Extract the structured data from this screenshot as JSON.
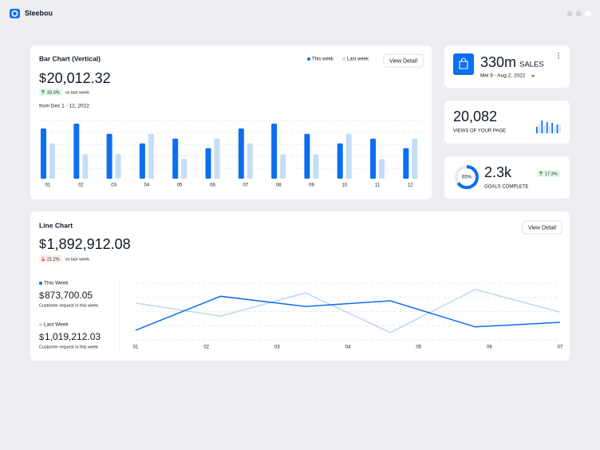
{
  "header": {
    "brand": "Sleebou"
  },
  "chart_data": [
    {
      "type": "bar",
      "title": "Bar Chart (Vertical)",
      "button": "View Detail",
      "currency": "$",
      "total": "20,012.32",
      "change": "33.3%",
      "change_note": "vs last week",
      "period": "from Dec 1 - 12, 2022",
      "categories": [
        "01",
        "02",
        "03",
        "04",
        "05",
        "06",
        "07",
        "08",
        "09",
        "10",
        "11",
        "12"
      ],
      "series": [
        {
          "name": "This week",
          "color": "#0b6ff0",
          "values": [
            84,
            92,
            75,
            59,
            67,
            51,
            84,
            92,
            75,
            59,
            67,
            51
          ]
        },
        {
          "name": "Last week",
          "color": "#c6ddf8",
          "values": [
            59,
            41,
            41,
            75,
            33,
            67,
            59,
            41,
            41,
            75,
            33,
            67
          ]
        }
      ],
      "ylim": [
        0,
        100
      ],
      "grid": true
    },
    {
      "type": "line",
      "title": "Line Chart",
      "button": "View Detail",
      "currency": "$",
      "total": "1,892,912.08",
      "change": "21.2%",
      "change_note": "vs last week",
      "x": [
        1,
        2.2,
        3.4,
        4.6,
        5.8,
        7
      ],
      "xlim": [
        1,
        7
      ],
      "xticks": [
        {
          "value": 1,
          "label": "01"
        },
        {
          "value": 2,
          "label": "02"
        },
        {
          "value": 3,
          "label": "03"
        },
        {
          "value": 4,
          "label": "04"
        },
        {
          "value": 5,
          "label": "05"
        },
        {
          "value": 6,
          "label": "06"
        },
        {
          "value": 7,
          "label": "07"
        }
      ],
      "ylim": [
        0,
        100
      ],
      "grid": true,
      "series": [
        {
          "name": "This Week",
          "color": "#0b6ff0",
          "total": "873,700.05",
          "note": "Customer request in this week",
          "values": [
            17,
            77,
            59,
            69,
            23,
            31
          ]
        },
        {
          "name": "Last Week",
          "color": "#bcd7f6",
          "total": "1,019,212.03",
          "note": "Customer request in this week",
          "values": [
            65,
            42,
            83,
            13,
            89,
            49
          ]
        }
      ]
    }
  ],
  "stat_cards": [
    {
      "value": "330m",
      "unit": "SALES",
      "range": "Mei 9 - Aug 2, 2022"
    },
    {
      "value": "20,082",
      "label": "VIEWS OF YOUR PAGE",
      "spark": [
        8,
        12,
        16,
        10,
        14,
        9,
        13,
        8,
        11,
        10
      ]
    },
    {
      "value": "2.3k",
      "label": "GOALS COMPLETE",
      "change": "17.3%",
      "progress": {
        "value": 65,
        "label": "65%"
      }
    }
  ]
}
